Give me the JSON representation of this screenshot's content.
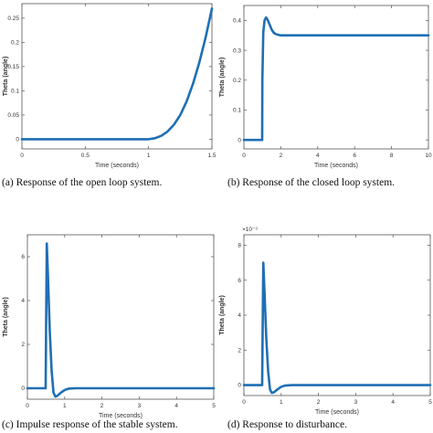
{
  "colors": {
    "line": "#1f6fb4",
    "axis": "#555555",
    "frame_bg": "#ffffff"
  },
  "chart_data": [
    {
      "type": "line",
      "panel_id": "a",
      "caption": "(a) Response of the open loop system.",
      "xlabel": "Time (seconds)",
      "ylabel": "Theta (angle)",
      "xlim": [
        0,
        1.5
      ],
      "ylim": [
        -0.02,
        0.28
      ],
      "x_ticks": [
        "0",
        "0.5",
        "1",
        "1.5"
      ],
      "x_tick_values": [
        0,
        0.5,
        1,
        1.5
      ],
      "y_ticks": [
        "0",
        "0.05",
        "0.1",
        "0.15",
        "0.2",
        "0.25"
      ],
      "y_tick_values": [
        0,
        0.05,
        0.1,
        0.15,
        0.2,
        0.25
      ],
      "exponent": "",
      "series": [
        {
          "x": [
            0,
            0.5,
            1.0,
            1.05,
            1.1,
            1.15,
            1.2,
            1.25,
            1.3,
            1.35,
            1.4,
            1.45,
            1.5
          ],
          "y": [
            0,
            0,
            0,
            0.002,
            0.007,
            0.016,
            0.03,
            0.05,
            0.078,
            0.114,
            0.158,
            0.21,
            0.27
          ]
        }
      ]
    },
    {
      "type": "line",
      "panel_id": "b",
      "caption": "(b) Response of the closed loop system.",
      "xlabel": "Time (seconds)",
      "ylabel": "Theta (angle)",
      "xlim": [
        0,
        10
      ],
      "ylim": [
        -0.03,
        0.45
      ],
      "x_ticks": [
        "0",
        "2",
        "4",
        "6",
        "8",
        "10"
      ],
      "x_tick_values": [
        0,
        2,
        4,
        6,
        8,
        10
      ],
      "y_ticks": [
        "0",
        "0.1",
        "0.2",
        "0.3",
        "0.4"
      ],
      "y_tick_values": [
        0,
        0.1,
        0.2,
        0.3,
        0.4
      ],
      "exponent": "",
      "series": [
        {
          "x": [
            0,
            0.99,
            1.0,
            1.05,
            1.12,
            1.2,
            1.3,
            1.4,
            1.5,
            1.6,
            1.7,
            1.85,
            2.0,
            2.5,
            10
          ],
          "y": [
            0,
            0,
            0.2,
            0.36,
            0.4,
            0.41,
            0.4,
            0.385,
            0.37,
            0.36,
            0.355,
            0.352,
            0.35,
            0.35,
            0.35
          ]
        }
      ]
    },
    {
      "type": "line",
      "panel_id": "c",
      "caption": "(c) Impulse response of the stable system.",
      "xlabel": "Time (seconds)",
      "ylabel": "Theta (angle)",
      "xlim": [
        0,
        5
      ],
      "ylim": [
        -0.5,
        7
      ],
      "x_ticks": [
        "0",
        "1",
        "2",
        "3",
        "4",
        "5"
      ],
      "x_tick_values": [
        0,
        1,
        2,
        3,
        4,
        5
      ],
      "y_ticks": [
        "0",
        "2",
        "4",
        "6"
      ],
      "y_tick_values": [
        0,
        2,
        4,
        6
      ],
      "exponent": "",
      "series": [
        {
          "x": [
            0,
            0.49,
            0.5,
            0.52,
            0.55,
            0.6,
            0.65,
            0.7,
            0.75,
            0.8,
            0.9,
            1.0,
            1.1,
            1.3,
            1.6,
            5
          ],
          "y": [
            0,
            0,
            2.5,
            6.6,
            5.2,
            2.6,
            0.8,
            -0.2,
            -0.38,
            -0.35,
            -0.2,
            -0.08,
            -0.02,
            0,
            0,
            0
          ]
        }
      ]
    },
    {
      "type": "line",
      "panel_id": "d",
      "caption": "(d) Response to disturbance.",
      "xlabel": "Time (seconds)",
      "ylabel": "Theta (angle)",
      "xlim": [
        0,
        5
      ],
      "ylim": [
        -0.6,
        8.6
      ],
      "x_ticks": [
        "0",
        "1",
        "2",
        "3",
        "4",
        "5"
      ],
      "x_tick_values": [
        0,
        1,
        2,
        3,
        4,
        5
      ],
      "y_ticks": [
        "0",
        "2",
        "4",
        "6",
        "8"
      ],
      "y_tick_values": [
        0,
        2,
        4,
        6,
        8
      ],
      "exponent": "×10⁻³",
      "series": [
        {
          "x": [
            0,
            0.49,
            0.5,
            0.52,
            0.55,
            0.6,
            0.65,
            0.7,
            0.75,
            0.8,
            0.9,
            1.0,
            1.1,
            1.3,
            1.6,
            5
          ],
          "y": [
            0,
            0,
            2.5,
            7.0,
            5.5,
            2.7,
            0.8,
            -0.25,
            -0.45,
            -0.42,
            -0.25,
            -0.1,
            -0.03,
            0,
            0,
            0
          ]
        }
      ]
    }
  ]
}
